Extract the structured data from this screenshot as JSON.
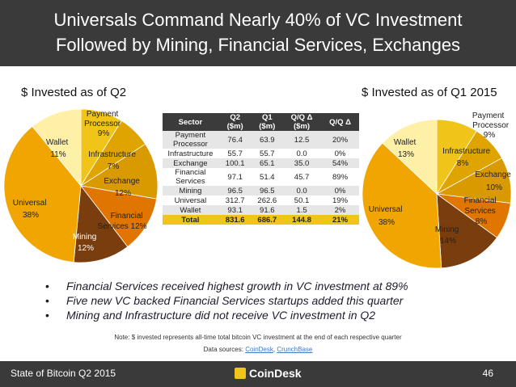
{
  "header": {
    "title_line1": "Universals Command Nearly 40% of VC Investment",
    "title_line2": "Followed by Mining, Financial Services, Exchanges"
  },
  "subheads": {
    "left": "$ Invested as of Q2",
    "right": "$ Invested as of Q1 2015"
  },
  "chart_data": [
    {
      "type": "pie",
      "title": "$ Invested as of Q2",
      "slices": [
        {
          "label": "Payment Processor",
          "value": 9,
          "color": "#f0c419"
        },
        {
          "label": "Infrastructure",
          "value": 7,
          "color": "#e0a400"
        },
        {
          "label": "Exchange",
          "value": 12,
          "color": "#d99a00"
        },
        {
          "label": "Financial Services",
          "value": 12,
          "color": "#e07600"
        },
        {
          "label": "Mining",
          "value": 12,
          "color": "#7a3e0e"
        },
        {
          "label": "Universal",
          "value": 38,
          "color": "#f0a500"
        },
        {
          "label": "Wallet",
          "value": 11,
          "color": "#fff0a8"
        }
      ]
    },
    {
      "type": "pie",
      "title": "$ Invested as of Q1 2015",
      "slices": [
        {
          "label": "Payment Processor",
          "value": 9,
          "color": "#f0c419"
        },
        {
          "label": "Infrastructure",
          "value": 8,
          "color": "#e0a400"
        },
        {
          "label": "Exchange",
          "value": 10,
          "color": "#d99a00"
        },
        {
          "label": "Financial Services",
          "value": 8,
          "color": "#e07600"
        },
        {
          "label": "Mining",
          "value": 14,
          "color": "#7a3e0e"
        },
        {
          "label": "Universal",
          "value": 38,
          "color": "#f0a500"
        },
        {
          "label": "Wallet",
          "value": 13,
          "color": "#fff0a8"
        }
      ]
    }
  ],
  "pie_left_labels": [
    {
      "line1": "Payment",
      "line2": "Processor",
      "line3": "9%"
    },
    {
      "line1": "Infrastructure",
      "line2": "7%"
    },
    {
      "line1": "Exchange",
      "line2": "12%"
    },
    {
      "line1": "Financial",
      "line2": "Services 12%"
    },
    {
      "line1": "Mining",
      "line2": "12%"
    },
    {
      "line1": "Universal",
      "line2": "38%"
    },
    {
      "line1": "Wallet",
      "line2": "11%"
    }
  ],
  "pie_right_labels": [
    {
      "line1": "Payment",
      "line2": "Processor",
      "line3": "9%"
    },
    {
      "line1": "Infrastructure",
      "line2": "8%"
    },
    {
      "line1": "Exchange",
      "line2": "10%"
    },
    {
      "line1": "Financial",
      "line2": "Services",
      "line3": "8%"
    },
    {
      "line1": "Mining",
      "line2": "14%"
    },
    {
      "line1": "Universal",
      "line2": "38%"
    },
    {
      "line1": "Wallet",
      "line2": "13%"
    }
  ],
  "table": {
    "headers": {
      "sector": "Sector",
      "q2": "Q2",
      "q2_unit": "($m)",
      "q1": "Q1",
      "q1_unit": "($m)",
      "delta": "Q/Q Δ",
      "delta_unit": "($m)",
      "delta_pct": "Q/Q Δ"
    },
    "rows": [
      [
        "Payment Processor",
        "76.4",
        "63.9",
        "12.5",
        "20%"
      ],
      [
        "Infrastructure",
        "55.7",
        "55.7",
        "0.0",
        "0%"
      ],
      [
        "Exchange",
        "100.1",
        "65.1",
        "35.0",
        "54%"
      ],
      [
        "Financial Services",
        "97.1",
        "51.4",
        "45.7",
        "89%"
      ],
      [
        "Mining",
        "96.5",
        "96.5",
        "0.0",
        "0%"
      ],
      [
        "Universal",
        "312.7",
        "262.6",
        "50.1",
        "19%"
      ],
      [
        "Wallet",
        "93.1",
        "91.6",
        "1.5",
        "2%"
      ]
    ],
    "total": [
      "Total",
      "831.6",
      "686.7",
      "144.8",
      "21%"
    ]
  },
  "bullets": [
    "Financial Services received highest growth in VC investment at 89%",
    "Five new VC backed Financial Services startups added this quarter",
    "Mining and Infrastructure did not receive VC investment in Q2"
  ],
  "notes": {
    "line1": "Note: $ invested represents all-time total bitcoin VC investment at the end of each respective quarter",
    "sources_prefix": "Data sources: ",
    "source1": "CoinDesk",
    "separator": ", ",
    "source2": "CrunchBase"
  },
  "footer": {
    "left": "State of Bitcoin Q2 2015",
    "brand": "CoinDesk",
    "page": "46"
  }
}
